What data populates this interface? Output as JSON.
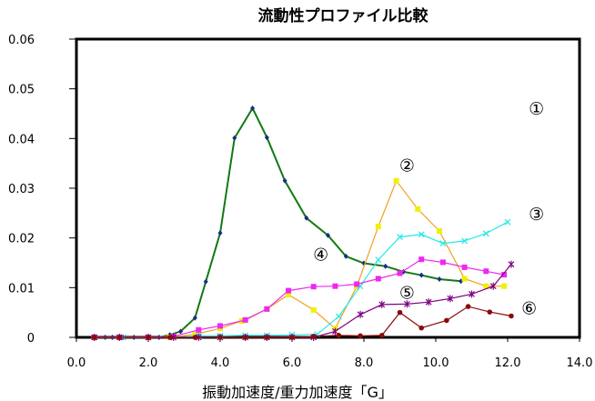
{
  "chart_data": {
    "type": "line",
    "title": "流動性プロファイル比較",
    "xlabel": "振動加速度/重力加速度「G」",
    "ylabel": "",
    "xlim": [
      0,
      14
    ],
    "ylim": [
      0,
      0.06
    ],
    "xticks": [
      0,
      2,
      4,
      6,
      8,
      10,
      12,
      14
    ],
    "xtick_labels": [
      "0.0",
      "2.0",
      "4.0",
      "6.0",
      "8.0",
      "10.0",
      "12.0",
      "14.0"
    ],
    "yticks": [
      0,
      0.01,
      0.02,
      0.03,
      0.04,
      0.05,
      0.06
    ],
    "ytick_labels": [
      "0",
      "0.01",
      "0.02",
      "0.03",
      "0.04",
      "0.05",
      "0.06"
    ],
    "grid": false,
    "legend": "none",
    "series": [
      {
        "label": "①",
        "color": "#127a12",
        "marker": "diamond",
        "label_pos": [
          12.8,
          0.0448
        ],
        "points": [
          [
            0.5,
            0
          ],
          [
            0.8,
            0
          ],
          [
            1.0,
            0
          ],
          [
            1.3,
            0
          ],
          [
            1.6,
            0
          ],
          [
            2.0,
            0
          ],
          [
            2.3,
            0
          ],
          [
            2.6,
            0.0005
          ],
          [
            2.9,
            0.0012
          ],
          [
            3.3,
            0.0039
          ],
          [
            3.6,
            0.0112
          ],
          [
            4.0,
            0.021
          ],
          [
            4.4,
            0.0401
          ],
          [
            4.9,
            0.0461
          ],
          [
            5.3,
            0.0402
          ],
          [
            5.8,
            0.0315
          ],
          [
            6.4,
            0.024
          ],
          [
            7.0,
            0.0205
          ],
          [
            7.5,
            0.0163
          ],
          [
            8.0,
            0.0149
          ],
          [
            8.6,
            0.0143
          ],
          [
            9.1,
            0.0132
          ],
          [
            9.6,
            0.0125
          ],
          [
            10.1,
            0.0117
          ],
          [
            10.7,
            0.0113
          ]
        ]
      },
      {
        "label": "②",
        "color": "#f2a020",
        "marker_color": "#f0f000",
        "marker": "square",
        "label_pos": [
          9.2,
          0.0334
        ],
        "points": [
          [
            0.5,
            0
          ],
          [
            1.2,
            0
          ],
          [
            2.0,
            0
          ],
          [
            2.6,
            0
          ],
          [
            3.3,
            0.0006
          ],
          [
            4.0,
            0.0018
          ],
          [
            4.6,
            0.0033
          ],
          [
            5.3,
            0.0057
          ],
          [
            5.9,
            0.0086
          ],
          [
            6.6,
            0.0055
          ],
          [
            7.2,
            0.0018
          ],
          [
            7.8,
            0.0102
          ],
          [
            8.4,
            0.0223
          ],
          [
            8.9,
            0.0315
          ],
          [
            9.5,
            0.0258
          ],
          [
            10.1,
            0.0214
          ],
          [
            10.8,
            0.0118
          ],
          [
            11.4,
            0.0103
          ],
          [
            11.9,
            0.0103
          ]
        ]
      },
      {
        "label": "③",
        "color": "#26e8e8",
        "marker": "x",
        "label_pos": [
          12.8,
          0.0236
        ],
        "points": [
          [
            0.5,
            0
          ],
          [
            1.3,
            0
          ],
          [
            2.0,
            0
          ],
          [
            2.7,
            0
          ],
          [
            3.4,
            0.0003
          ],
          [
            4.0,
            0.0003
          ],
          [
            4.7,
            0.0004
          ],
          [
            5.3,
            0.0004
          ],
          [
            6.0,
            0.0005
          ],
          [
            6.7,
            0.0006
          ],
          [
            7.3,
            0.0042
          ],
          [
            7.9,
            0.0103
          ],
          [
            8.4,
            0.0156
          ],
          [
            9.0,
            0.0202
          ],
          [
            9.6,
            0.0207
          ],
          [
            10.2,
            0.0189
          ],
          [
            10.8,
            0.0194
          ],
          [
            11.4,
            0.0209
          ],
          [
            12.0,
            0.0232
          ]
        ]
      },
      {
        "label": "④",
        "color": "#ee28ee",
        "marker": "square",
        "label_pos": [
          6.8,
          0.0155
        ],
        "points": [
          [
            0.5,
            0
          ],
          [
            1.2,
            0
          ],
          [
            2.0,
            0
          ],
          [
            2.7,
            0.0002
          ],
          [
            3.4,
            0.0015
          ],
          [
            4.0,
            0.0023
          ],
          [
            4.7,
            0.0035
          ],
          [
            5.3,
            0.0057
          ],
          [
            5.9,
            0.0094
          ],
          [
            6.6,
            0.0102
          ],
          [
            7.2,
            0.0103
          ],
          [
            7.8,
            0.0107
          ],
          [
            8.4,
            0.0118
          ],
          [
            9.0,
            0.0129
          ],
          [
            9.6,
            0.0157
          ],
          [
            10.2,
            0.0151
          ],
          [
            10.8,
            0.0141
          ],
          [
            11.4,
            0.0133
          ],
          [
            11.9,
            0.0126
          ]
        ]
      },
      {
        "label": "⑤",
        "color": "#800080",
        "marker": "star",
        "label_pos": [
          9.2,
          0.0078
        ],
        "points": [
          [
            0.5,
            0
          ],
          [
            1.2,
            0
          ],
          [
            2.0,
            0
          ],
          [
            2.7,
            0
          ],
          [
            3.4,
            0
          ],
          [
            4.0,
            0
          ],
          [
            4.7,
            0
          ],
          [
            5.3,
            0
          ],
          [
            6.0,
            0
          ],
          [
            6.6,
            0
          ],
          [
            7.2,
            0.0012
          ],
          [
            7.9,
            0.0046
          ],
          [
            8.5,
            0.0066
          ],
          [
            9.2,
            0.0067
          ],
          [
            9.8,
            0.0071
          ],
          [
            10.4,
            0.0078
          ],
          [
            11.0,
            0.0087
          ],
          [
            11.6,
            0.0103
          ],
          [
            12.1,
            0.0147
          ]
        ]
      },
      {
        "label": "⑥",
        "color": "#8b0a0a",
        "marker": "circle",
        "label_pos": [
          12.6,
          0.0047
        ],
        "points": [
          [
            0.5,
            0
          ],
          [
            1.2,
            0
          ],
          [
            2.0,
            0
          ],
          [
            2.6,
            0
          ],
          [
            3.3,
            0
          ],
          [
            4.0,
            0
          ],
          [
            4.7,
            0
          ],
          [
            5.3,
            0
          ],
          [
            6.0,
            0
          ],
          [
            6.6,
            0.0002
          ],
          [
            7.3,
            0.0004
          ],
          [
            7.9,
            0.0003
          ],
          [
            8.5,
            0.0004
          ],
          [
            9.0,
            0.005
          ],
          [
            9.6,
            0.0019
          ],
          [
            10.3,
            0.0034
          ],
          [
            10.9,
            0.0062
          ],
          [
            11.5,
            0.0051
          ],
          [
            12.1,
            0.0043
          ]
        ]
      }
    ]
  }
}
